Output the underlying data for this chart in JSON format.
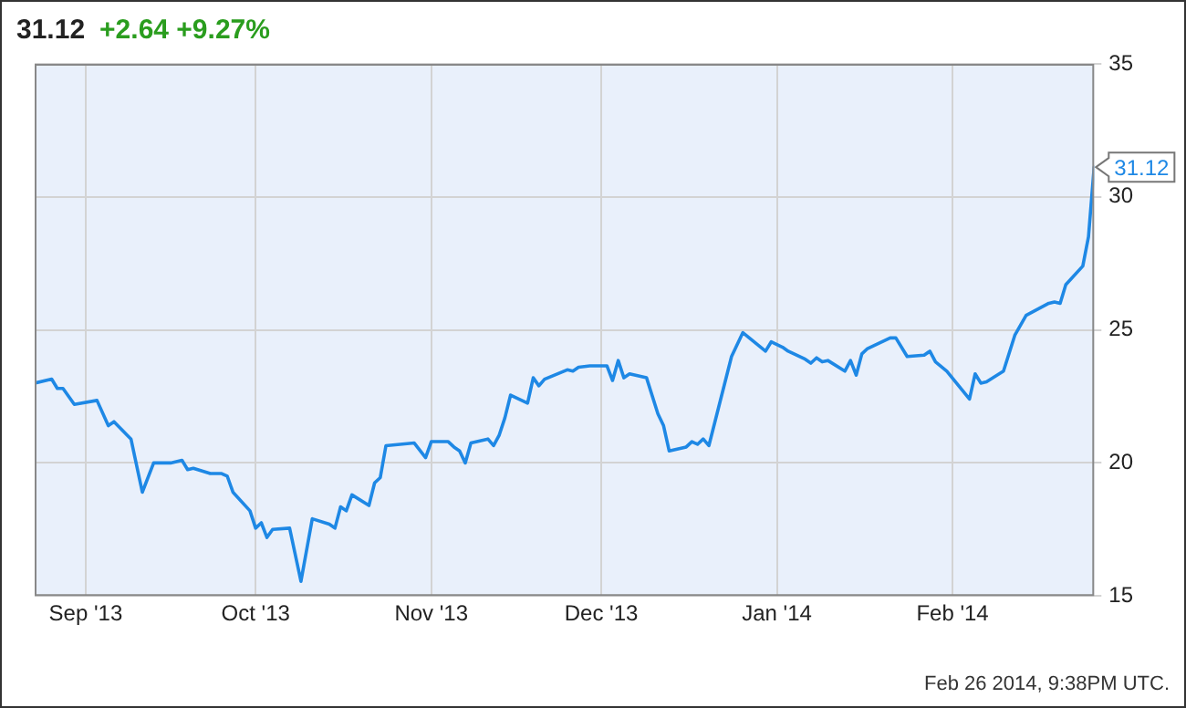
{
  "chart_data": {
    "type": "line",
    "title": "31.12",
    "subtitle": "+2.64 +9.27%",
    "x": [
      "2013-08-23",
      "2013-08-26",
      "2013-08-27",
      "2013-08-28",
      "2013-08-30",
      "2013-09-03",
      "2013-09-05",
      "2013-09-06",
      "2013-09-09",
      "2013-09-11",
      "2013-09-13",
      "2013-09-16",
      "2013-09-18",
      "2013-09-19",
      "2013-09-20",
      "2013-09-23",
      "2013-09-25",
      "2013-09-26",
      "2013-09-27",
      "2013-09-30",
      "2013-10-01",
      "2013-10-02",
      "2013-10-03",
      "2013-10-04",
      "2013-10-07",
      "2013-10-09",
      "2013-10-11",
      "2013-10-14",
      "2013-10-15",
      "2013-10-16",
      "2013-10-17",
      "2013-10-18",
      "2013-10-21",
      "2013-10-22",
      "2013-10-23",
      "2013-10-24",
      "2013-10-29",
      "2013-10-31",
      "2013-11-01",
      "2013-11-04",
      "2013-11-05",
      "2013-11-06",
      "2013-11-07",
      "2013-11-08",
      "2013-11-11",
      "2013-11-12",
      "2013-11-13",
      "2013-11-14",
      "2013-11-15",
      "2013-11-18",
      "2013-11-19",
      "2013-11-20",
      "2013-11-21",
      "2013-11-25",
      "2013-11-26",
      "2013-11-27",
      "2013-11-29",
      "2013-12-02",
      "2013-12-03",
      "2013-12-04",
      "2013-12-05",
      "2013-12-06",
      "2013-12-09",
      "2013-12-11",
      "2013-12-12",
      "2013-12-13",
      "2013-12-16",
      "2013-12-17",
      "2013-12-18",
      "2013-12-19",
      "2013-12-20",
      "2013-12-24",
      "2013-12-26",
      "2013-12-30",
      "2013-12-31",
      "2014-01-02",
      "2014-01-03",
      "2014-01-06",
      "2014-01-07",
      "2014-01-08",
      "2014-01-09",
      "2014-01-10",
      "2014-01-13",
      "2014-01-14",
      "2014-01-15",
      "2014-01-16",
      "2014-01-17",
      "2014-01-21",
      "2014-01-22",
      "2014-01-24",
      "2014-01-27",
      "2014-01-28",
      "2014-01-29",
      "2014-01-31",
      "2014-02-04",
      "2014-02-05",
      "2014-02-06",
      "2014-02-07",
      "2014-02-10",
      "2014-02-12",
      "2014-02-14",
      "2014-02-18",
      "2014-02-19",
      "2014-02-20",
      "2014-02-21",
      "2014-02-24",
      "2014-02-25",
      "2014-02-26"
    ],
    "series": [
      {
        "color": "#1e88e5",
        "values": [
          23.0,
          23.15,
          22.8,
          22.8,
          22.2,
          22.35,
          21.4,
          21.55,
          20.9,
          18.9,
          20.0,
          20.0,
          20.1,
          19.75,
          19.8,
          19.6,
          19.6,
          19.5,
          18.9,
          18.2,
          17.55,
          17.75,
          17.2,
          17.5,
          17.55,
          15.55,
          17.9,
          17.7,
          17.55,
          18.35,
          18.2,
          18.8,
          18.4,
          19.25,
          19.45,
          20.65,
          20.75,
          20.2,
          20.8,
          20.8,
          20.6,
          20.45,
          20.0,
          20.75,
          20.9,
          20.65,
          21.05,
          21.7,
          22.55,
          22.25,
          23.2,
          22.9,
          23.15,
          23.5,
          23.45,
          23.6,
          23.65,
          23.65,
          23.1,
          23.85,
          23.2,
          23.35,
          23.2,
          21.85,
          21.4,
          20.45,
          20.6,
          20.8,
          20.7,
          20.9,
          20.65,
          24.0,
          24.9,
          24.2,
          24.55,
          24.35,
          24.2,
          23.9,
          23.75,
          23.95,
          23.8,
          23.85,
          23.45,
          23.85,
          23.3,
          24.1,
          24.3,
          24.7,
          24.7,
          24.0,
          24.05,
          24.2,
          23.8,
          23.45,
          22.4,
          23.35,
          23.0,
          23.05,
          23.45,
          24.8,
          25.55,
          26.0,
          26.05,
          26.0,
          26.7,
          27.4,
          28.5,
          31.12
        ]
      }
    ],
    "xlim": [
      "2013-08-23",
      "2014-02-26"
    ],
    "xticks": [
      {
        "value": "2013-09-01",
        "label": "Sep '13"
      },
      {
        "value": "2013-10-01",
        "label": "Oct '13"
      },
      {
        "value": "2013-11-01",
        "label": "Nov '13"
      },
      {
        "value": "2013-12-01",
        "label": "Dec '13"
      },
      {
        "value": "2014-01-01",
        "label": "Jan '14"
      },
      {
        "value": "2014-02-01",
        "label": "Feb '14"
      }
    ],
    "ylim": [
      15,
      35
    ],
    "yticks": [
      15,
      20,
      25,
      30,
      35
    ],
    "grid": true,
    "legend": false,
    "marker": "none",
    "line_style": "solid",
    "annotations": [
      {
        "text": "31.12",
        "x": "2014-02-26",
        "y": 31.12
      },
      "Feb 26 2014, 9:38PM UTC."
    ]
  }
}
